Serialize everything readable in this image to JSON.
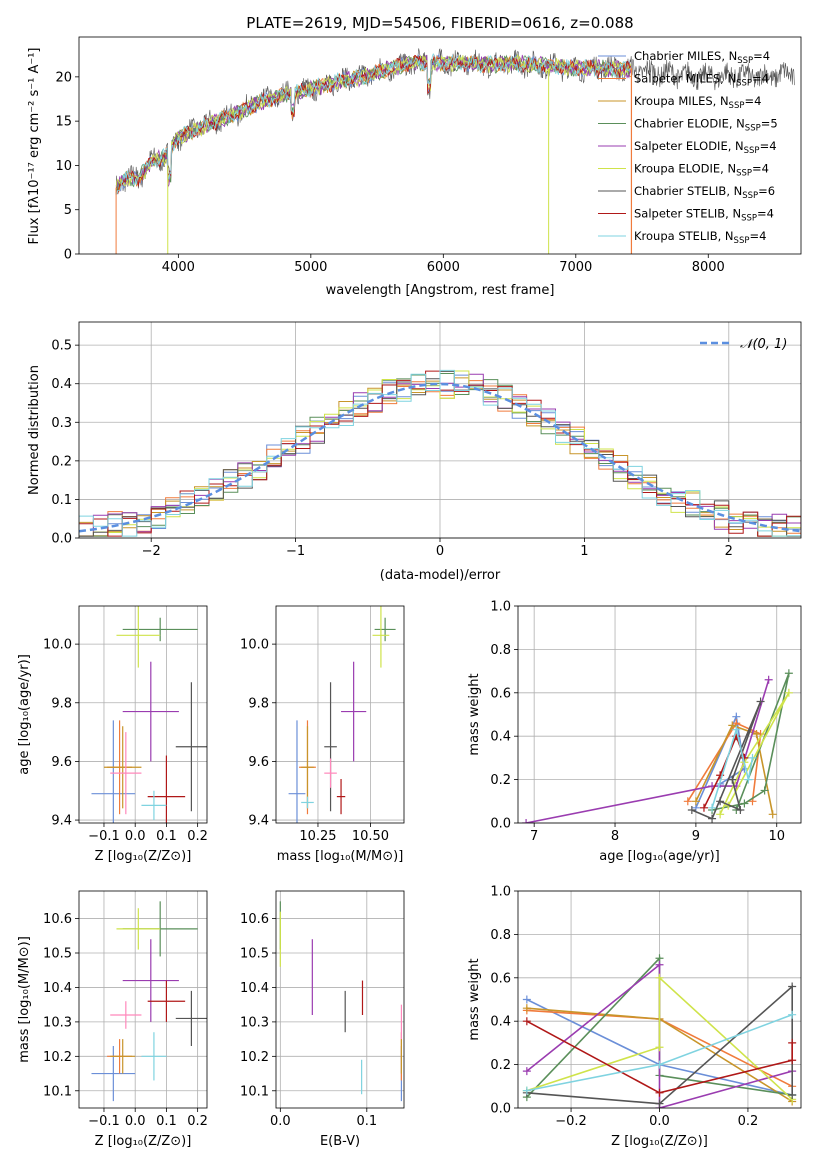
{
  "chart_data": [
    {
      "id": "spectrum",
      "type": "line",
      "title": "PLATE=2619, MJD=54506, FIBERID=0616, z=0.088",
      "xlabel": "wavelength [Angstrom, rest frame]",
      "ylabel": "Flux [fλ10⁻¹⁷ erg cm⁻² s⁻¹ A⁻¹]",
      "xlim": [
        3250,
        8700
      ],
      "ylim": [
        0,
        24.5
      ],
      "xticks": [
        4000,
        5000,
        6000,
        7000,
        8000
      ],
      "yticks": [
        0,
        5,
        10,
        15,
        20
      ],
      "grid": false,
      "legend_position": "top-right",
      "curve_shape": [
        [
          3530,
          7.5
        ],
        [
          3600,
          8.5
        ],
        [
          3700,
          8.6
        ],
        [
          3800,
          10.5
        ],
        [
          3900,
          11
        ],
        [
          4000,
          13.2
        ],
        [
          4100,
          13.8
        ],
        [
          4200,
          14.5
        ],
        [
          4400,
          15.6
        ],
        [
          4600,
          17
        ],
        [
          4800,
          18
        ],
        [
          5000,
          18.6
        ],
        [
          5200,
          19.5
        ],
        [
          5400,
          20
        ],
        [
          5600,
          21
        ],
        [
          5800,
          21.6
        ],
        [
          6000,
          21.6
        ],
        [
          6200,
          21.5
        ],
        [
          6400,
          21.4
        ],
        [
          6600,
          21.5
        ],
        [
          6800,
          21.2
        ],
        [
          7000,
          21
        ],
        [
          7200,
          21
        ],
        [
          7400,
          20.8
        ],
        [
          7600,
          20.5
        ],
        [
          7800,
          20.2
        ],
        [
          8000,
          20
        ],
        [
          8200,
          20.2
        ],
        [
          8400,
          20
        ],
        [
          8600,
          20.3
        ]
      ],
      "series": [
        {
          "name": "Chabrier MILES, N",
          "sub": "SSP",
          "suffix": "=4",
          "color": "#6b8fd8"
        },
        {
          "name": "Salpeter MILES, N",
          "sub": "SSP",
          "suffix": "=4",
          "color": "#f07b3c"
        },
        {
          "name": "Kroupa MILES, N",
          "sub": "SSP",
          "suffix": "=4",
          "color": "#c8952a"
        },
        {
          "name": "Chabrier ELODIE, N",
          "sub": "SSP",
          "suffix": "=5",
          "color": "#5a8f5a"
        },
        {
          "name": "Salpeter ELODIE, N",
          "sub": "SSP",
          "suffix": "=4",
          "color": "#9a3cb0"
        },
        {
          "name": "Kroupa ELODIE, N",
          "sub": "SSP",
          "suffix": "=4",
          "color": "#cfe34a"
        },
        {
          "name": "Chabrier STELIB, N",
          "sub": "SSP",
          "suffix": "=6",
          "color": "#555555"
        },
        {
          "name": "Salpeter STELIB, N",
          "sub": "SSP",
          "suffix": "=4",
          "color": "#b01818"
        },
        {
          "name": "Kroupa STELIB, N",
          "sub": "SSP",
          "suffix": "=4",
          "color": "#7fd3e0"
        }
      ]
    },
    {
      "id": "residuals",
      "type": "line",
      "xlabel": "(data-model)/error",
      "ylabel": "Normed distribution",
      "xlim": [
        -2.5,
        2.5
      ],
      "ylim": [
        0,
        0.56
      ],
      "xticks": [
        -2,
        -1,
        0,
        1,
        2
      ],
      "yticks": [
        0.0,
        0.1,
        0.2,
        0.3,
        0.4,
        0.5
      ],
      "grid": true,
      "legend": "𝒩(0, 1)",
      "legend_position": "top-right",
      "reference_curve": "normal(0,1)",
      "histogram_bin_width": 0.1
    },
    {
      "id": "age_vs_Z",
      "type": "scatter",
      "xlabel": "Z [log₁₀(Z/Z⊙)]",
      "ylabel": "age  [log₁₀(age/yr)]",
      "xlim": [
        -0.18,
        0.23
      ],
      "ylim": [
        9.39,
        10.13
      ],
      "xticks": [
        -0.1,
        0,
        0.1,
        0.2
      ],
      "xtick_labels": [
        "−0.1",
        "0.0",
        "0.1",
        "0.2"
      ],
      "yticks": [
        9.4,
        9.6,
        9.8,
        10.0
      ],
      "grid": true,
      "points": [
        {
          "x": -0.07,
          "y": 9.49,
          "xerr": 0.07,
          "yerr": 0.25,
          "color": "#6b8fd8"
        },
        {
          "x": -0.05,
          "y": 9.58,
          "xerr": 0.04,
          "yerr": 0.16,
          "color": "#f07b3c"
        },
        {
          "x": -0.04,
          "y": 9.58,
          "xerr": 0.06,
          "yerr": 0.14,
          "color": "#c8952a"
        },
        {
          "x": 0.08,
          "y": 10.05,
          "xerr": 0.12,
          "yerr": 0.04,
          "color": "#5a8f5a"
        },
        {
          "x": 0.05,
          "y": 9.77,
          "xerr": 0.09,
          "yerr": 0.17,
          "color": "#9a3cb0"
        },
        {
          "x": 0.01,
          "y": 10.03,
          "xerr": 0.07,
          "yerr": 0.11,
          "color": "#cfe34a"
        },
        {
          "x": 0.18,
          "y": 9.65,
          "xerr": 0.05,
          "yerr": 0.22,
          "color": "#555555"
        },
        {
          "x": 0.1,
          "y": 9.48,
          "xerr": 0.06,
          "yerr": 0.14,
          "color": "#b01818"
        },
        {
          "x": 0.06,
          "y": 9.45,
          "xerr": 0.04,
          "yerr": 0.05,
          "color": "#7fd3e0"
        },
        {
          "x": -0.03,
          "y": 9.56,
          "xerr": 0.05,
          "yerr": 0.14,
          "color": "#ff88bb"
        }
      ]
    },
    {
      "id": "age_vs_mass",
      "type": "scatter",
      "xlabel": "mass [log₁₀(M/M⊙)]",
      "ylabel": "",
      "xlim": [
        10.05,
        10.66
      ],
      "ylim": [
        9.39,
        10.13
      ],
      "xticks": [
        10.25,
        10.5
      ],
      "xtick_labels": [
        "10.25",
        "10.50"
      ],
      "yticks": [
        9.4,
        9.6,
        9.8,
        10.0
      ],
      "grid": true,
      "points": [
        {
          "x": 10.15,
          "y": 9.49,
          "xerr": 0.04,
          "yerr": 0.25,
          "color": "#6b8fd8"
        },
        {
          "x": 10.2,
          "y": 9.58,
          "xerr": 0.04,
          "yerr": 0.16,
          "color": "#f07b3c"
        },
        {
          "x": 10.2,
          "y": 9.58,
          "xerr": 0.03,
          "yerr": 0.14,
          "color": "#c8952a"
        },
        {
          "x": 10.57,
          "y": 10.05,
          "xerr": 0.05,
          "yerr": 0.04,
          "color": "#5a8f5a"
        },
        {
          "x": 10.42,
          "y": 9.77,
          "xerr": 0.06,
          "yerr": 0.17,
          "color": "#9a3cb0"
        },
        {
          "x": 10.55,
          "y": 10.03,
          "xerr": 0.04,
          "yerr": 0.11,
          "color": "#cfe34a"
        },
        {
          "x": 10.31,
          "y": 9.65,
          "xerr": 0.03,
          "yerr": 0.22,
          "color": "#555555"
        },
        {
          "x": 10.36,
          "y": 9.48,
          "xerr": 0.02,
          "yerr": 0.06,
          "color": "#b01818"
        },
        {
          "x": 10.2,
          "y": 9.46,
          "xerr": 0.03,
          "yerr": 0.02,
          "color": "#7fd3e0"
        },
        {
          "x": 10.31,
          "y": 9.56,
          "xerr": 0.03,
          "yerr": 0.05,
          "color": "#ff88bb"
        }
      ]
    },
    {
      "id": "weight_vs_age",
      "type": "line",
      "xlabel": "age  [log₁₀(age/yr)]",
      "ylabel": "mass weight",
      "xlim": [
        6.8,
        10.3
      ],
      "ylim": [
        0,
        1.0
      ],
      "xticks": [
        7,
        8,
        9,
        10
      ],
      "yticks": [
        0.0,
        0.2,
        0.4,
        0.6,
        0.8,
        1.0
      ],
      "grid": true,
      "series": [
        {
          "color": "#6b8fd8",
          "points": [
            [
              9.0,
              0.07
            ],
            [
              9.5,
              0.49
            ],
            [
              9.6,
              0.25
            ],
            [
              9.3,
              0.18
            ]
          ]
        },
        {
          "color": "#f07b3c",
          "points": [
            [
              8.9,
              0.1
            ],
            [
              9.5,
              0.46
            ],
            [
              9.8,
              0.41
            ],
            [
              9.7,
              0.1
            ]
          ]
        },
        {
          "color": "#c8952a",
          "points": [
            [
              9.0,
              0.1
            ],
            [
              9.45,
              0.45
            ],
            [
              9.75,
              0.41
            ],
            [
              9.95,
              0.04
            ]
          ]
        },
        {
          "color": "#5a8f5a",
          "points": [
            [
              9.2,
              0.06
            ],
            [
              9.6,
              0.09
            ],
            [
              9.85,
              0.15
            ],
            [
              10.15,
              0.69
            ],
            [
              9.5,
              0.06
            ]
          ]
        },
        {
          "color": "#9a3cb0",
          "points": [
            [
              6.9,
              0.0
            ],
            [
              9.2,
              0.17
            ],
            [
              9.5,
              0.17
            ],
            [
              9.9,
              0.66
            ]
          ]
        },
        {
          "color": "#cfe34a",
          "points": [
            [
              9.3,
              0.04
            ],
            [
              9.6,
              0.28
            ],
            [
              10.15,
              0.6
            ],
            [
              9.4,
              0.08
            ]
          ]
        },
        {
          "color": "#555555",
          "points": [
            [
              8.95,
              0.06
            ],
            [
              9.2,
              0.02
            ],
            [
              9.8,
              0.56
            ],
            [
              9.45,
              0.2
            ],
            [
              9.55,
              0.06
            ],
            [
              9.3,
              0.1
            ]
          ]
        },
        {
          "color": "#b01818",
          "points": [
            [
              9.1,
              0.07
            ],
            [
              9.3,
              0.22
            ],
            [
              9.5,
              0.4
            ],
            [
              9.6,
              0.3
            ]
          ]
        },
        {
          "color": "#7fd3e0",
          "points": [
            [
              9.2,
              0.07
            ],
            [
              9.5,
              0.43
            ],
            [
              9.65,
              0.2
            ],
            [
              9.7,
              0.3
            ]
          ]
        }
      ]
    },
    {
      "id": "mass_vs_Z",
      "type": "scatter",
      "xlabel": "Z [log₁₀(Z/Z⊙)]",
      "ylabel": "mass [log₁₀(M/M⊙)]",
      "xlim": [
        -0.18,
        0.23
      ],
      "ylim": [
        10.05,
        10.68
      ],
      "xticks": [
        -0.1,
        0,
        0.1,
        0.2
      ],
      "xtick_labels": [
        "−0.1",
        "0.0",
        "0.1",
        "0.2"
      ],
      "yticks": [
        10.1,
        10.2,
        10.3,
        10.4,
        10.5,
        10.6
      ],
      "grid": true,
      "points": [
        {
          "x": -0.07,
          "y": 10.15,
          "xerr": 0.07,
          "yerr": 0.08,
          "color": "#6b8fd8"
        },
        {
          "x": -0.05,
          "y": 10.2,
          "xerr": 0.04,
          "yerr": 0.05,
          "color": "#f07b3c"
        },
        {
          "x": -0.04,
          "y": 10.2,
          "xerr": 0.04,
          "yerr": 0.05,
          "color": "#c8952a"
        },
        {
          "x": 0.08,
          "y": 10.57,
          "xerr": 0.12,
          "yerr": 0.08,
          "color": "#5a8f5a"
        },
        {
          "x": 0.05,
          "y": 10.42,
          "xerr": 0.09,
          "yerr": 0.12,
          "color": "#9a3cb0"
        },
        {
          "x": 0.01,
          "y": 10.57,
          "xerr": 0.07,
          "yerr": 0.06,
          "color": "#cfe34a"
        },
        {
          "x": 0.18,
          "y": 10.31,
          "xerr": 0.05,
          "yerr": 0.08,
          "color": "#555555"
        },
        {
          "x": 0.1,
          "y": 10.36,
          "xerr": 0.06,
          "yerr": 0.06,
          "color": "#b01818"
        },
        {
          "x": 0.06,
          "y": 10.2,
          "xerr": 0.04,
          "yerr": 0.07,
          "color": "#7fd3e0"
        },
        {
          "x": -0.03,
          "y": 10.32,
          "xerr": 0.05,
          "yerr": 0.04,
          "color": "#ff88bb"
        }
      ]
    },
    {
      "id": "mass_vs_ebv",
      "type": "scatter",
      "xlabel": "E(B-V)",
      "ylabel": "",
      "xlim": [
        -0.005,
        0.143
      ],
      "ylim": [
        10.05,
        10.68
      ],
      "xticks": [
        0.0,
        0.1
      ],
      "xtick_labels": [
        "0.0",
        "0.1"
      ],
      "yticks": [
        10.1,
        10.2,
        10.3,
        10.4,
        10.5,
        10.6
      ],
      "grid": true,
      "points": [
        {
          "x": 0.14,
          "y": 10.15,
          "xerr": 0,
          "yerr": 0.08,
          "color": "#6b8fd8"
        },
        {
          "x": 0.14,
          "y": 10.2,
          "xerr": 0,
          "yerr": 0.07,
          "color": "#f07b3c"
        },
        {
          "x": 0.14,
          "y": 10.2,
          "xerr": 0,
          "yerr": 0.05,
          "color": "#c8952a"
        },
        {
          "x": 0.0,
          "y": 10.58,
          "xerr": 0,
          "yerr": 0.07,
          "color": "#5a8f5a"
        },
        {
          "x": 0.037,
          "y": 10.43,
          "xerr": 0,
          "yerr": 0.11,
          "color": "#9a3cb0"
        },
        {
          "x": 0.0,
          "y": 10.54,
          "xerr": 0,
          "yerr": 0.08,
          "color": "#cfe34a"
        },
        {
          "x": 0.075,
          "y": 10.33,
          "xerr": 0,
          "yerr": 0.06,
          "color": "#555555"
        },
        {
          "x": 0.095,
          "y": 10.37,
          "xerr": 0,
          "yerr": 0.05,
          "color": "#b01818"
        },
        {
          "x": 0.094,
          "y": 10.14,
          "xerr": 0,
          "yerr": 0.05,
          "color": "#7fd3e0"
        },
        {
          "x": 0.14,
          "y": 10.3,
          "xerr": 0,
          "yerr": 0.05,
          "color": "#ff88bb"
        }
      ]
    },
    {
      "id": "weight_vs_Z",
      "type": "line",
      "xlabel": "Z [log₁₀(Z/Z⊙)]",
      "ylabel": "mass weight",
      "xlim": [
        -0.32,
        0.32
      ],
      "ylim": [
        0,
        1.0
      ],
      "xticks": [
        -0.2,
        0.0,
        0.2
      ],
      "xtick_labels": [
        "−0.2",
        "0.0",
        "0.2"
      ],
      "yticks": [
        0.0,
        0.2,
        0.4,
        0.6,
        0.8,
        1.0
      ],
      "grid": true,
      "series": [
        {
          "color": "#6b8fd8",
          "points": [
            [
              -0.3,
              0.5
            ],
            [
              0.0,
              0.2
            ],
            [
              0.3,
              0.06
            ]
          ]
        },
        {
          "color": "#f07b3c",
          "points": [
            [
              -0.3,
              0.45
            ],
            [
              0.0,
              0.41
            ],
            [
              0.3,
              0.1
            ]
          ]
        },
        {
          "color": "#c8952a",
          "points": [
            [
              -0.3,
              0.46
            ],
            [
              0.0,
              0.41
            ],
            [
              0.3,
              0.03
            ]
          ]
        },
        {
          "color": "#5a8f5a",
          "points": [
            [
              -0.3,
              0.05
            ],
            [
              0.0,
              0.69
            ],
            [
              0.0,
              0.15
            ],
            [
              0.3,
              0.06
            ]
          ]
        },
        {
          "color": "#9a3cb0",
          "points": [
            [
              -0.3,
              0.17
            ],
            [
              0.0,
              0.66
            ],
            [
              0.0,
              0.0
            ],
            [
              0.3,
              0.17
            ]
          ]
        },
        {
          "color": "#cfe34a",
          "points": [
            [
              -0.3,
              0.08
            ],
            [
              0.0,
              0.28
            ],
            [
              0.0,
              0.6
            ],
            [
              0.3,
              0.04
            ]
          ]
        },
        {
          "color": "#555555",
          "points": [
            [
              -0.3,
              0.07
            ],
            [
              0.0,
              0.02
            ],
            [
              0.3,
              0.56
            ],
            [
              0.3,
              0.06
            ]
          ]
        },
        {
          "color": "#b01818",
          "points": [
            [
              -0.3,
              0.4
            ],
            [
              0.0,
              0.07
            ],
            [
              0.3,
              0.22
            ],
            [
              0.3,
              0.3
            ]
          ]
        },
        {
          "color": "#7fd3e0",
          "points": [
            [
              -0.3,
              0.08
            ],
            [
              0.0,
              0.2
            ],
            [
              0.3,
              0.43
            ]
          ]
        }
      ]
    }
  ]
}
